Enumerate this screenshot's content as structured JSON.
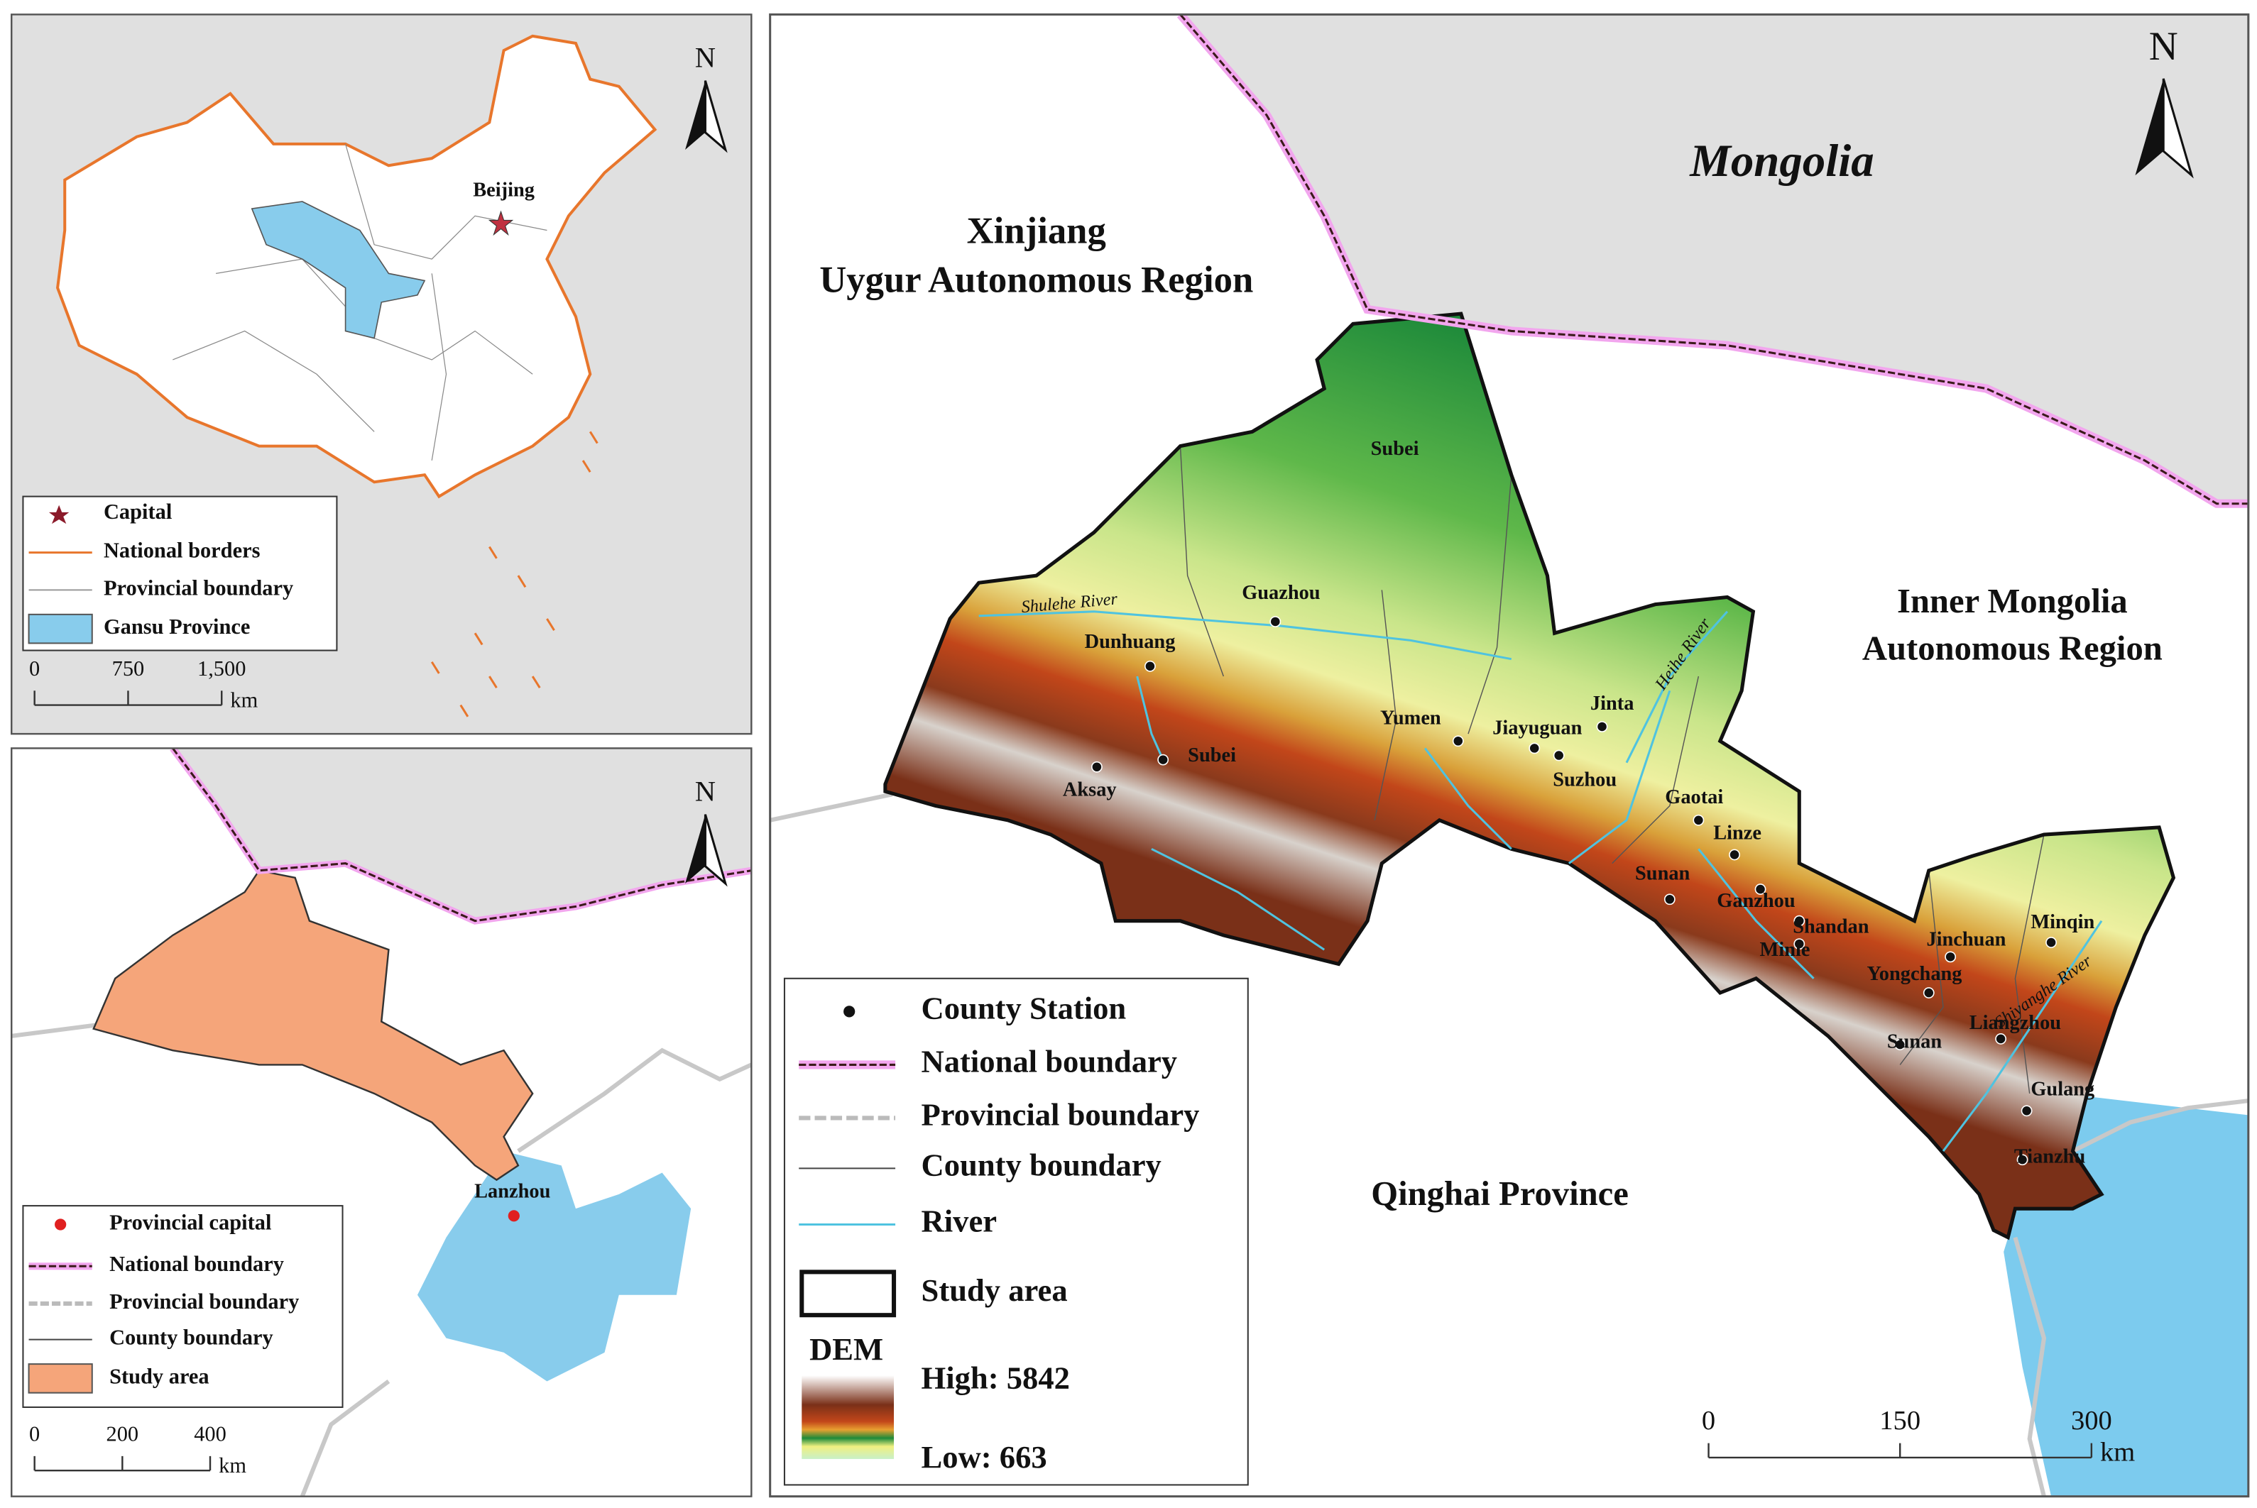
{
  "inset_china": {
    "north": "N",
    "capital": "Beijing",
    "legend": [
      "Capital",
      "National borders",
      "Provincial boundary",
      "Gansu Province"
    ],
    "scale": [
      "0",
      "750",
      "1,500"
    ],
    "scale_unit": "km"
  },
  "inset_gansu": {
    "north": "N",
    "capital": "Lanzhou",
    "legend": [
      "Provincial capital",
      "National boundary",
      "Provincial boundary",
      "County boundary",
      "Study area"
    ],
    "scale": [
      "0",
      "200",
      "400"
    ],
    "scale_unit": "km"
  },
  "main_map": {
    "north": "N",
    "regions": [
      [
        "Mongolia"
      ],
      [
        "Xinjiang",
        "Uygur Autonomous Region"
      ],
      [
        "Inner Mongolia",
        "Autonomous Region"
      ],
      [
        "Qinghai Province"
      ]
    ],
    "rivers": [
      "Shulehe River",
      "Heihe River",
      "Shiyanghe River"
    ],
    "places": [
      "Subei",
      "Guazhou",
      "Dunhuang",
      "Subei",
      "Aksay",
      "Yumen",
      "Jiayuguan",
      "Jinta",
      "Suzhou",
      "Gaotai",
      "Linze",
      "Sunan",
      "Ganzhou",
      "Shandan",
      "Minle",
      "Jinchuan",
      "Minqin",
      "Yongchang",
      "Liangzhou",
      "Sunan",
      "Gulang",
      "Tianzhu"
    ],
    "legend": [
      "County Station",
      "National boundary",
      "Provincial boundary",
      "County boundary",
      "River",
      "Study area"
    ],
    "dem": {
      "title": "DEM",
      "high": "High: 5842",
      "low": "Low: 663"
    },
    "scale": [
      "0",
      "150",
      "300"
    ],
    "scale_unit": "km"
  }
}
